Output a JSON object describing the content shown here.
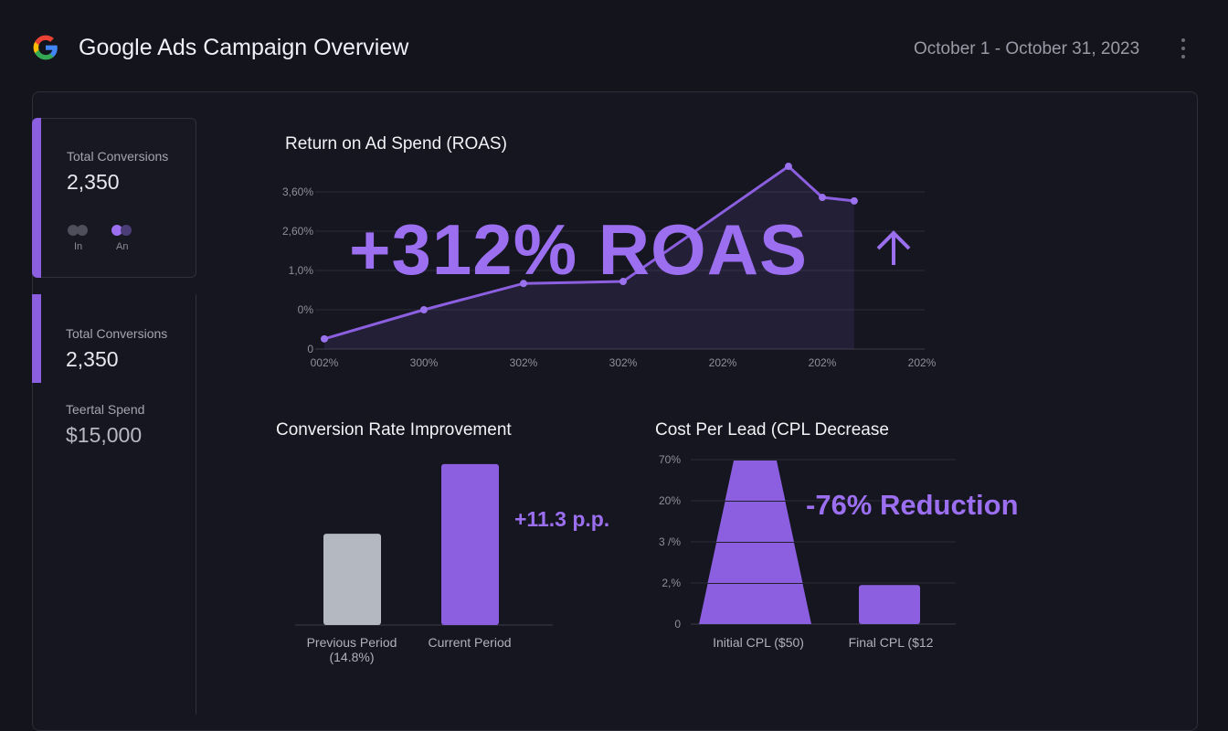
{
  "header": {
    "title": "Google Ads Campaign Overview",
    "date_range": "October 1 - October 31, 2023",
    "logo": "google-g-logo",
    "menu_icon": "more-vert-icon"
  },
  "colors": {
    "accent": "#8b5fe0",
    "background": "#13141c",
    "grey_bar": "#b4b8c0"
  },
  "sidebar": {
    "card1": {
      "label": "Total Conversions",
      "value": "2,350",
      "toggle_labels": [
        "In",
        "An"
      ]
    },
    "card2": {
      "label": "Total Conversions",
      "value": "2,350",
      "spend_label": "Teertal Spend",
      "spend_value": "$15,000"
    }
  },
  "chart_data": [
    {
      "type": "line",
      "title": "Return on Ad Spend (ROAS)",
      "annotation": "+312% ROAS",
      "annotation_icon": "arrow-up-icon",
      "x_ticks": [
        "002%",
        "300%",
        "302%",
        "302%",
        "202%",
        "202%",
        "202%"
      ],
      "y_ticks": [
        "0",
        "0%",
        "1,0%",
        "2,60%",
        "3,60%"
      ],
      "x": [
        0,
        1,
        2,
        3,
        4.66,
        5,
        5.32
      ],
      "y": [
        0.26,
        1.0,
        1.67,
        1.72,
        4.65,
        3.86,
        3.77
      ],
      "grid": true
    },
    {
      "type": "bar",
      "title": "Conversion Rate Improvement",
      "categories": [
        "Previous Period",
        "Current Period"
      ],
      "category_sublabels": [
        "(14.8%)",
        ""
      ],
      "values": [
        14.8,
        26.1
      ],
      "annotation": "+11.3 p.p.",
      "colors": [
        "#b4b8c0",
        "#8b5fe0"
      ]
    },
    {
      "type": "bar",
      "title": "Cost Per Lead (CPL Decrease",
      "categories": [
        "Initial CPL ($50)",
        "Final CPL ($12"
      ],
      "y_ticks": [
        "0",
        "2,%",
        "3 /%",
        "20%",
        "70%"
      ],
      "values": [
        4,
        0.95
      ],
      "annotation": "-76% Reduction",
      "grid": true
    }
  ]
}
